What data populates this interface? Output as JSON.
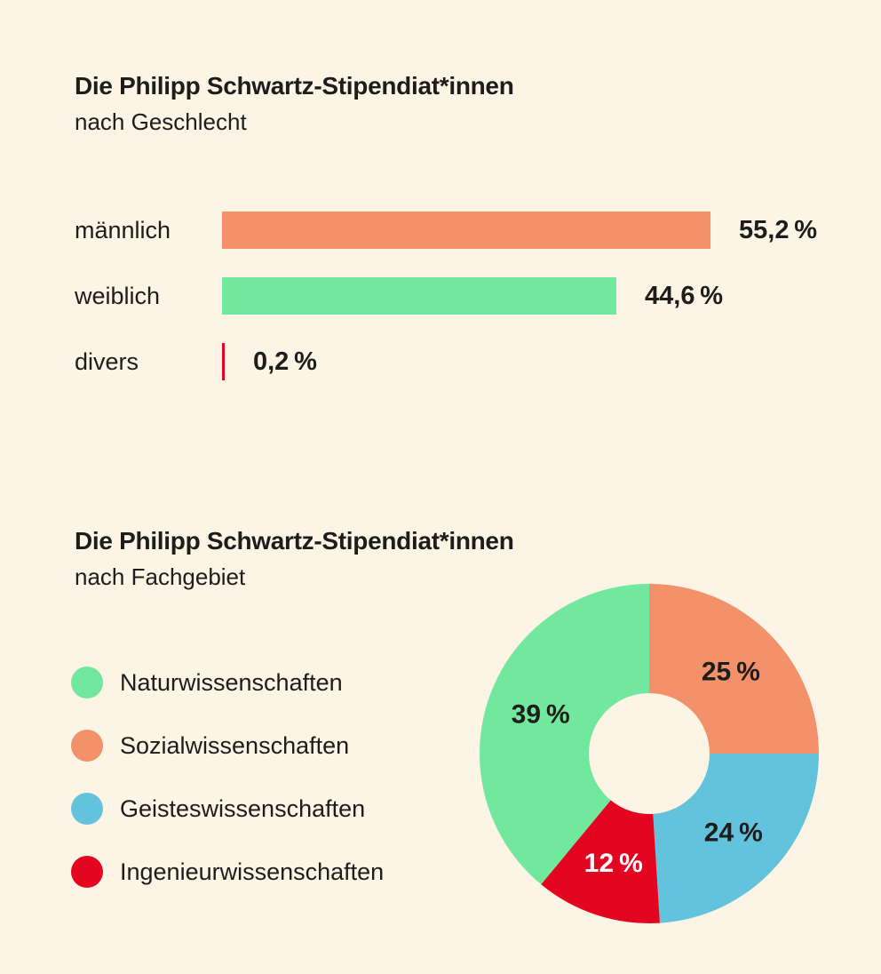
{
  "page": {
    "background_color": "#FCF4E4",
    "text_color": "#1D1D1B"
  },
  "section_gender": {
    "title": "Die Philipp Schwartz-Stipendiat*innen",
    "subtitle": "nach Geschlecht"
  },
  "section_field": {
    "title": "Die Philipp Schwartz-Stipendiat*innen",
    "subtitle": "nach Fachgebiet"
  },
  "chart_data": [
    {
      "type": "bar",
      "orientation": "horizontal",
      "title": "Die Philipp Schwartz-Stipendiat*innen",
      "subtitle": "nach Geschlecht",
      "categories": [
        "männlich",
        "weiblich",
        "divers"
      ],
      "values": [
        55.2,
        44.6,
        0.2
      ],
      "value_labels": [
        "55,2 %",
        "44,6 %",
        "0,2 %"
      ],
      "bar_colors": [
        "#F2916A",
        "#72E89E",
        "#E40521"
      ],
      "xlim": [
        0,
        55.2
      ],
      "grid": false,
      "value_label_position": "right-of-bar"
    },
    {
      "type": "pie",
      "donut": true,
      "title": "Die Philipp Schwartz-Stipendiat*innen",
      "subtitle": "nach Fachgebiet",
      "start_angle_deg": 0,
      "clockwise": true,
      "slices": [
        {
          "label": "Sozialwissenschaften",
          "value": 25,
          "value_label": "25 %",
          "color": "#F2916A",
          "value_label_color": "#1D1D1B"
        },
        {
          "label": "Geisteswissenschaften",
          "value": 24,
          "value_label": "24 %",
          "color": "#63C3DC",
          "value_label_color": "#1D1D1B"
        },
        {
          "label": "Ingenieurwissenschaften",
          "value": 12,
          "value_label": "12 %",
          "color": "#E40521",
          "value_label_color": "#FFFFFF"
        },
        {
          "label": "Naturwissenschaften",
          "value": 39,
          "value_label": "39 %",
          "color": "#72E89E",
          "value_label_color": "#1D1D1B"
        }
      ],
      "legend_position": "left",
      "legend": [
        {
          "label": "Naturwissenschaften",
          "color": "#72E89E"
        },
        {
          "label": "Sozialwissenschaften",
          "color": "#F2916A"
        },
        {
          "label": "Geisteswissenschaften",
          "color": "#63C3DC"
        },
        {
          "label": "Ingenieurwissenschaften",
          "color": "#E40521"
        }
      ]
    }
  ]
}
